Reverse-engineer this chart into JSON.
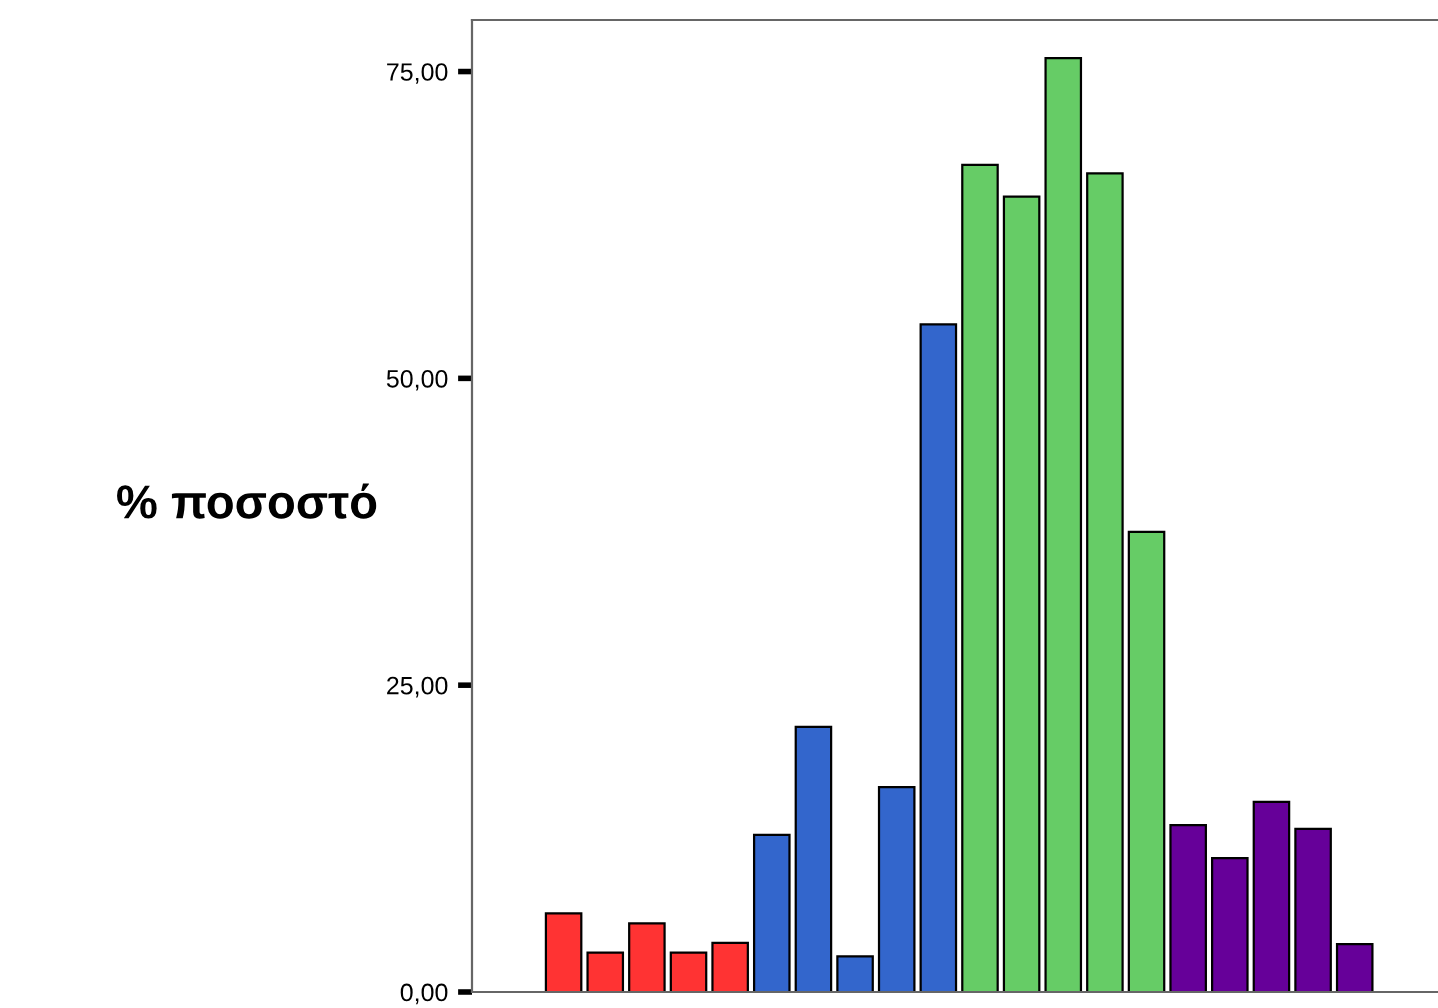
{
  "chart_data": {
    "type": "bar",
    "ylabel": "% ποσοστό",
    "categories": [
      null,
      null,
      null,
      null,
      null,
      null,
      null,
      null,
      null,
      null,
      null,
      null,
      null,
      null,
      null,
      null,
      null,
      null,
      null,
      null
    ],
    "values": [
      6.4,
      3.2,
      5.6,
      3.2,
      4.0,
      12.8,
      21.6,
      2.9,
      16.7,
      54.4,
      67.4,
      64.8,
      76.1,
      66.7,
      37.5,
      13.6,
      10.9,
      15.5,
      13.3,
      3.9
    ],
    "colors": [
      "#ff3333",
      "#ff3333",
      "#ff3333",
      "#ff3333",
      "#ff3333",
      "#3366cc",
      "#3366cc",
      "#3366cc",
      "#3366cc",
      "#3366cc",
      "#66cc66",
      "#66cc66",
      "#66cc66",
      "#66cc66",
      "#66cc66",
      "#660099",
      "#660099",
      "#660099",
      "#660099",
      "#660099"
    ],
    "ylim": [
      0,
      79.2
    ],
    "yticks": [
      {
        "value": 0,
        "label": "0,00"
      },
      {
        "value": 25,
        "label": "25,00"
      },
      {
        "value": 50,
        "label": "50,00"
      },
      {
        "value": 75,
        "label": "75,00"
      }
    ],
    "grid": false,
    "legend": false
  }
}
